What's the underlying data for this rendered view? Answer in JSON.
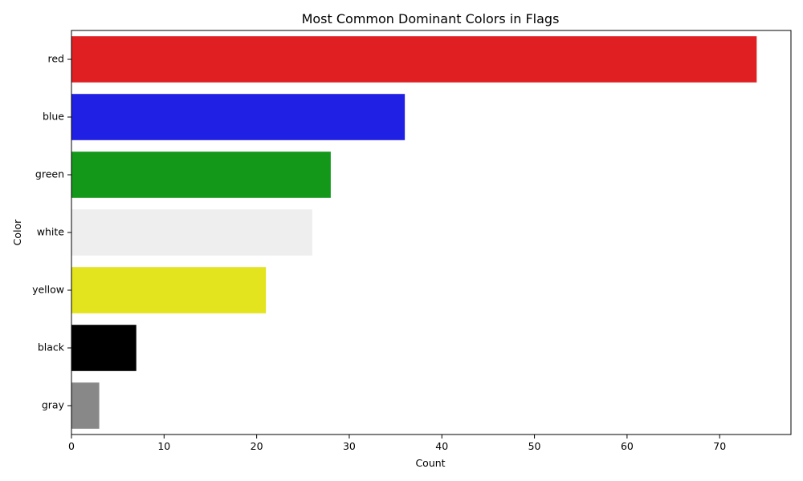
{
  "chart_data": {
    "type": "bar",
    "orientation": "horizontal",
    "title": "Most Common Dominant Colors in Flags",
    "xlabel": "Count",
    "ylabel": "Color",
    "categories": [
      "red",
      "blue",
      "green",
      "white",
      "yellow",
      "black",
      "gray"
    ],
    "values": [
      74,
      36,
      28,
      26,
      21,
      7,
      3
    ],
    "bar_colors": [
      "#e01f22",
      "#2020e4",
      "#13981a",
      "#eeeeee",
      "#e3e31e",
      "#000000",
      "#888888"
    ],
    "xlim": [
      0,
      77.7
    ],
    "xticks": [
      0,
      10,
      20,
      30,
      40,
      50,
      60,
      70
    ],
    "grid": false,
    "legend": "none"
  }
}
